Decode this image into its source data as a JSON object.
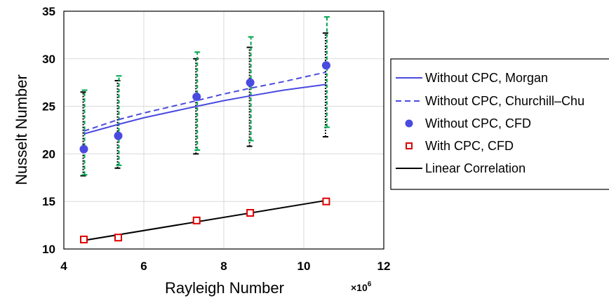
{
  "chart_data": {
    "type": "scatter",
    "title": "",
    "xlabel": "Rayleigh Number",
    "ylabel": "Nusselt Number",
    "x_multiplier_label": "×10",
    "x_multiplier_exponent": "6",
    "xlim": [
      4,
      12
    ],
    "ylim": [
      10,
      35
    ],
    "x_ticks": [
      4,
      6,
      8,
      10,
      12
    ],
    "y_ticks": [
      10,
      15,
      20,
      25,
      30,
      35
    ],
    "x_tick_labels": [
      "4",
      "6",
      "8",
      "10",
      "12"
    ],
    "y_tick_labels": [
      "10",
      "15",
      "20",
      "25",
      "30",
      "35"
    ],
    "grid": true,
    "legend_position": "right",
    "series": [
      {
        "name": "Without CPC, Morgan",
        "kind": "line",
        "style": "solid",
        "color": "#4A4AE0",
        "x": [
          4.5,
          5.36,
          6.0,
          7.32,
          8.0,
          8.66,
          9.5,
          10.56
        ],
        "y": [
          22.1,
          23.1,
          23.8,
          25.0,
          25.6,
          26.1,
          26.7,
          27.3
        ]
      },
      {
        "name": "Without CPC, Churchill–Chu",
        "kind": "line",
        "style": "dashed",
        "color": "#4A4AE0",
        "x": [
          4.5,
          5.36,
          6.0,
          7.32,
          8.0,
          8.66,
          9.5,
          10.56
        ],
        "y": [
          22.4,
          23.6,
          24.3,
          25.6,
          26.3,
          26.9,
          27.6,
          28.6
        ]
      },
      {
        "name": "Without CPC, CFD",
        "kind": "marker",
        "marker": "circle",
        "color": "#4A4AE0",
        "x": [
          4.5,
          5.36,
          7.32,
          8.66,
          10.56
        ],
        "y": [
          20.5,
          21.9,
          26.0,
          27.5,
          29.3
        ],
        "err_green": [
          [
            17.8,
            26.7
          ],
          [
            18.8,
            28.2
          ],
          [
            20.4,
            30.7
          ],
          [
            21.4,
            32.3
          ],
          [
            22.8,
            34.4
          ]
        ],
        "err_black": [
          [
            17.7,
            26.5
          ],
          [
            18.5,
            27.7
          ],
          [
            20.0,
            30.0
          ],
          [
            20.8,
            31.2
          ],
          [
            21.8,
            32.7
          ]
        ]
      },
      {
        "name": "With CPC, CFD",
        "kind": "marker",
        "marker": "open-square",
        "color": "#DD0000",
        "x": [
          4.5,
          5.36,
          7.32,
          8.66,
          10.56
        ],
        "y": [
          11.0,
          11.2,
          13.0,
          13.8,
          15.0
        ]
      },
      {
        "name": "Linear Correlation",
        "kind": "line",
        "style": "solid",
        "color": "#000000",
        "x": [
          4.5,
          10.56
        ],
        "y": [
          10.9,
          15.1
        ]
      }
    ],
    "errorbar_colors": {
      "green": "#00A550",
      "black": "#000000"
    },
    "grid_color": "#D9D9D9"
  }
}
